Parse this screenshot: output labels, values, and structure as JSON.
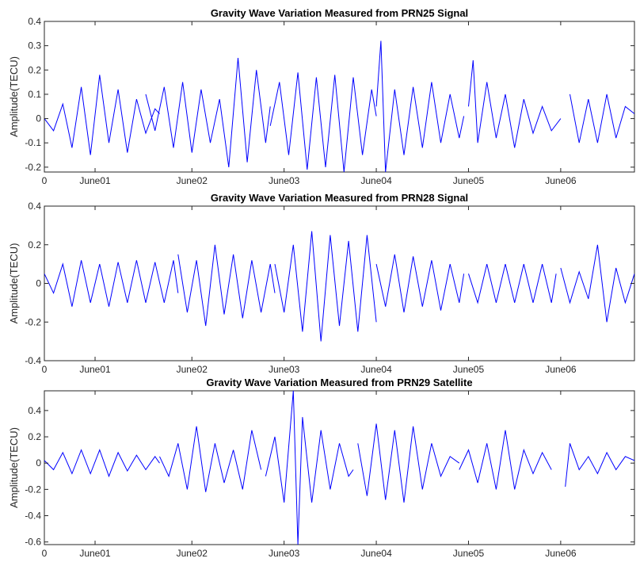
{
  "chart_data": [
    {
      "type": "line",
      "title": "Gravity Wave Variation Measured from PRN25 Signal",
      "xlabel": "",
      "ylabel": "Amplitude(TECU)",
      "xlim": [
        0,
        6.4
      ],
      "ylim": [
        -0.22,
        0.4
      ],
      "yticks": [
        -0.2,
        -0.1,
        0,
        0.1,
        0.2,
        0.3,
        0.4
      ],
      "ytick_labels": [
        "-0.2",
        "-0.1",
        "0",
        "0.1",
        "0.2",
        "0.3",
        "0.4"
      ],
      "xticks": [
        0,
        0.55,
        1.6,
        2.6,
        3.6,
        4.6,
        5.6
      ],
      "xtick_labels": [
        "0",
        "June01",
        "June02",
        "June03",
        "June04",
        "June05",
        "June06"
      ],
      "color": "#0000ff",
      "grid": false,
      "series": [
        {
          "x": [
            0.0,
            0.1,
            0.2,
            0.3,
            0.4,
            0.5,
            0.6,
            0.7,
            0.8,
            0.9,
            1.0,
            1.1,
            1.2,
            1.25
          ],
          "y": [
            0.0,
            -0.05,
            0.06,
            -0.12,
            0.13,
            -0.15,
            0.18,
            -0.1,
            0.12,
            -0.14,
            0.08,
            -0.06,
            0.04,
            0.02
          ]
        },
        {
          "x": [
            1.1,
            1.2,
            1.3,
            1.4,
            1.5,
            1.6,
            1.7,
            1.8,
            1.9,
            2.0,
            2.1,
            2.2,
            2.3,
            2.4,
            2.45
          ],
          "y": [
            0.1,
            -0.05,
            0.13,
            -0.12,
            0.15,
            -0.14,
            0.12,
            -0.1,
            0.08,
            -0.2,
            0.25,
            -0.18,
            0.2,
            -0.1,
            0.05
          ]
        },
        {
          "x": [
            2.45,
            2.55,
            2.65,
            2.75,
            2.85,
            2.95,
            3.05,
            3.15,
            3.25,
            3.35,
            3.45,
            3.55,
            3.6
          ],
          "y": [
            -0.03,
            0.15,
            -0.15,
            0.19,
            -0.21,
            0.17,
            -0.2,
            0.18,
            -0.22,
            0.17,
            -0.15,
            0.12,
            0.01
          ]
        },
        {
          "x": [
            3.6,
            3.65,
            3.7,
            3.8,
            3.9,
            4.0,
            4.1,
            4.2,
            4.3,
            4.4,
            4.5,
            4.55
          ],
          "y": [
            0.05,
            0.32,
            -0.22,
            0.12,
            -0.15,
            0.13,
            -0.12,
            0.15,
            -0.1,
            0.1,
            -0.08,
            0.01
          ]
        },
        {
          "x": [
            4.6,
            4.65,
            4.7,
            4.8,
            4.9,
            5.0,
            5.1,
            5.2,
            5.3,
            5.4,
            5.5,
            5.6
          ],
          "y": [
            0.05,
            0.24,
            -0.1,
            0.15,
            -0.08,
            0.1,
            -0.12,
            0.08,
            -0.06,
            0.05,
            -0.05,
            0.0
          ]
        },
        {
          "x": [
            5.7,
            5.8,
            5.9,
            6.0,
            6.1,
            6.2,
            6.3,
            6.4
          ],
          "y": [
            0.1,
            -0.1,
            0.08,
            -0.1,
            0.1,
            -0.08,
            0.05,
            0.02
          ]
        }
      ]
    },
    {
      "type": "line",
      "title": "Gravity Wave Variation Measured from PRN28 Signal",
      "xlabel": "",
      "ylabel": "Amplitude(TECU)",
      "xlim": [
        0,
        6.4
      ],
      "ylim": [
        -0.4,
        0.4
      ],
      "yticks": [
        -0.4,
        -0.2,
        0,
        0.2,
        0.4
      ],
      "ytick_labels": [
        "-0.4",
        "-0.2",
        "0",
        "0.2",
        "0.4"
      ],
      "xticks": [
        0,
        0.55,
        1.6,
        2.6,
        3.6,
        4.6,
        5.6
      ],
      "xtick_labels": [
        "0",
        "June01",
        "June02",
        "June03",
        "June04",
        "June05",
        "June06"
      ],
      "color": "#0000ff",
      "grid": false,
      "series": [
        {
          "x": [
            0.0,
            0.1,
            0.2,
            0.3,
            0.4,
            0.5,
            0.6,
            0.7,
            0.8,
            0.9,
            1.0,
            1.1,
            1.2,
            1.3,
            1.4,
            1.45
          ],
          "y": [
            0.05,
            -0.05,
            0.1,
            -0.12,
            0.12,
            -0.1,
            0.1,
            -0.12,
            0.11,
            -0.1,
            0.12,
            -0.1,
            0.11,
            -0.1,
            0.12,
            -0.05
          ]
        },
        {
          "x": [
            1.45,
            1.55,
            1.65,
            1.75,
            1.85,
            1.95,
            2.05,
            2.15,
            2.25,
            2.35,
            2.45,
            2.5
          ],
          "y": [
            0.15,
            -0.15,
            0.12,
            -0.22,
            0.2,
            -0.16,
            0.15,
            -0.18,
            0.12,
            -0.15,
            0.1,
            -0.05
          ]
        },
        {
          "x": [
            2.5,
            2.6,
            2.7,
            2.8,
            2.9,
            3.0,
            3.1,
            3.2,
            3.3,
            3.4,
            3.5,
            3.6
          ],
          "y": [
            0.1,
            -0.15,
            0.2,
            -0.25,
            0.27,
            -0.3,
            0.25,
            -0.22,
            0.22,
            -0.25,
            0.25,
            -0.2
          ]
        },
        {
          "x": [
            3.6,
            3.7,
            3.8,
            3.9,
            4.0,
            4.1,
            4.2,
            4.3,
            4.4,
            4.5,
            4.55
          ],
          "y": [
            0.1,
            -0.12,
            0.15,
            -0.15,
            0.14,
            -0.12,
            0.12,
            -0.14,
            0.1,
            -0.1,
            0.05
          ]
        },
        {
          "x": [
            4.6,
            4.7,
            4.8,
            4.9,
            5.0,
            5.1,
            5.2,
            5.3,
            5.4,
            5.5,
            5.55
          ],
          "y": [
            0.05,
            -0.1,
            0.1,
            -0.1,
            0.1,
            -0.1,
            0.1,
            -0.1,
            0.1,
            -0.1,
            0.05
          ]
        },
        {
          "x": [
            5.6,
            5.7,
            5.8,
            5.9,
            6.0,
            6.1,
            6.2,
            6.3,
            6.4
          ],
          "y": [
            0.08,
            -0.1,
            0.06,
            -0.08,
            0.2,
            -0.2,
            0.08,
            -0.1,
            0.05
          ]
        }
      ]
    },
    {
      "type": "line",
      "title": "Gravity Wave Variation Measured from PRN29 Satellite",
      "xlabel": "",
      "ylabel": "Amplitude(TECU)",
      "xlim": [
        0,
        6.4
      ],
      "ylim": [
        -0.62,
        0.55
      ],
      "yticks": [
        -0.6,
        -0.4,
        -0.2,
        0,
        0.2,
        0.4
      ],
      "ytick_labels": [
        "-0.6",
        "-0.4",
        "-0.2",
        "0",
        "0.2",
        "0.4"
      ],
      "xticks": [
        0,
        0.55,
        1.6,
        2.6,
        3.6,
        4.6,
        5.6
      ],
      "xtick_labels": [
        "0",
        "June01",
        "June02",
        "June03",
        "June04",
        "June05",
        "June06"
      ],
      "color": "#0000ff",
      "grid": false,
      "series": [
        {
          "x": [
            0.0,
            0.1,
            0.2,
            0.3,
            0.4,
            0.5,
            0.6,
            0.7,
            0.8,
            0.9,
            1.0,
            1.1,
            1.2,
            1.25
          ],
          "y": [
            0.02,
            -0.05,
            0.08,
            -0.08,
            0.1,
            -0.08,
            0.1,
            -0.1,
            0.08,
            -0.06,
            0.06,
            -0.05,
            0.05,
            0.0
          ]
        },
        {
          "x": [
            1.25,
            1.35,
            1.45,
            1.55,
            1.65,
            1.75,
            1.85,
            1.95,
            2.05,
            2.15,
            2.25,
            2.35
          ],
          "y": [
            0.05,
            -0.1,
            0.15,
            -0.2,
            0.28,
            -0.22,
            0.15,
            -0.15,
            0.1,
            -0.2,
            0.25,
            -0.05
          ]
        },
        {
          "x": [
            2.4,
            2.5,
            2.6,
            2.7,
            2.75,
            2.8,
            2.9,
            3.0,
            3.1,
            3.2,
            3.3,
            3.35
          ],
          "y": [
            -0.1,
            0.2,
            -0.3,
            0.55,
            -0.62,
            0.35,
            -0.3,
            0.25,
            -0.2,
            0.15,
            -0.1,
            -0.05
          ]
        },
        {
          "x": [
            3.4,
            3.5,
            3.6,
            3.7,
            3.8,
            3.9,
            4.0,
            4.1,
            4.2,
            4.3,
            4.4,
            4.5
          ],
          "y": [
            0.15,
            -0.25,
            0.3,
            -0.28,
            0.25,
            -0.3,
            0.28,
            -0.2,
            0.15,
            -0.1,
            0.05,
            0.0
          ]
        },
        {
          "x": [
            4.5,
            4.6,
            4.7,
            4.8,
            4.9,
            5.0,
            5.1,
            5.2,
            5.3,
            5.4,
            5.5
          ],
          "y": [
            -0.05,
            0.1,
            -0.15,
            0.15,
            -0.2,
            0.25,
            -0.2,
            0.1,
            -0.08,
            0.08,
            -0.05
          ]
        },
        {
          "x": [
            5.65,
            5.7,
            5.8,
            5.9,
            6.0,
            6.1,
            6.2,
            6.3,
            6.4
          ],
          "y": [
            -0.18,
            0.15,
            -0.05,
            0.05,
            -0.08,
            0.08,
            -0.05,
            0.05,
            0.02
          ]
        }
      ]
    }
  ]
}
